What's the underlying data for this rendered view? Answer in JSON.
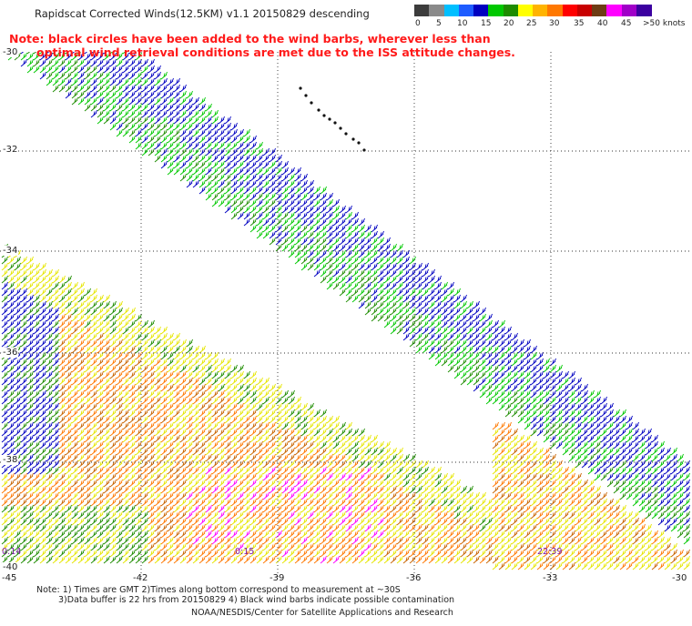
{
  "title": "Rapidscat Corrected Winds(12.5KM) v1.1 20150829 descending",
  "note_line1": "Note: black circles have been added to the wind barbs, wherever less than",
  "note_line2": "optimal wind retrieval conditions are met due to the ISS attitude changes.",
  "colorbar": {
    "labels": [
      "0",
      "5",
      "10",
      "15",
      "20",
      "25",
      "30",
      "35",
      "40",
      "45",
      ">50 knots"
    ],
    "colors": [
      "#3c3c3c",
      "#8a8a8a",
      "#00bfff",
      "#1e5cff",
      "#0000c0",
      "#00c800",
      "#1e8c00",
      "#ffff00",
      "#ffb400",
      "#ff7800",
      "#ff0000",
      "#c80000",
      "#6e3c14",
      "#ff00ff",
      "#a000c8",
      "#3c00a0"
    ]
  },
  "lat_labels": [
    "-30",
    "-32",
    "-34",
    "-36",
    "-38",
    "-40"
  ],
  "lon_labels": [
    "-45",
    "-42",
    "-39",
    "-36",
    "-33",
    "-30"
  ],
  "time_labels": [
    "0:14",
    "0:15",
    "22:39"
  ],
  "footer_line1": "Note: 1) Times are GMT 2)Times along bottom correspond to measurement at ~30S",
  "footer_line2": "3)Data buffer is 22 hrs from 20150829 4) Black wind barbs indicate possible contamination",
  "footer_line3": "NOAA/NESDIS/Center for Satellite Applications and Research"
}
